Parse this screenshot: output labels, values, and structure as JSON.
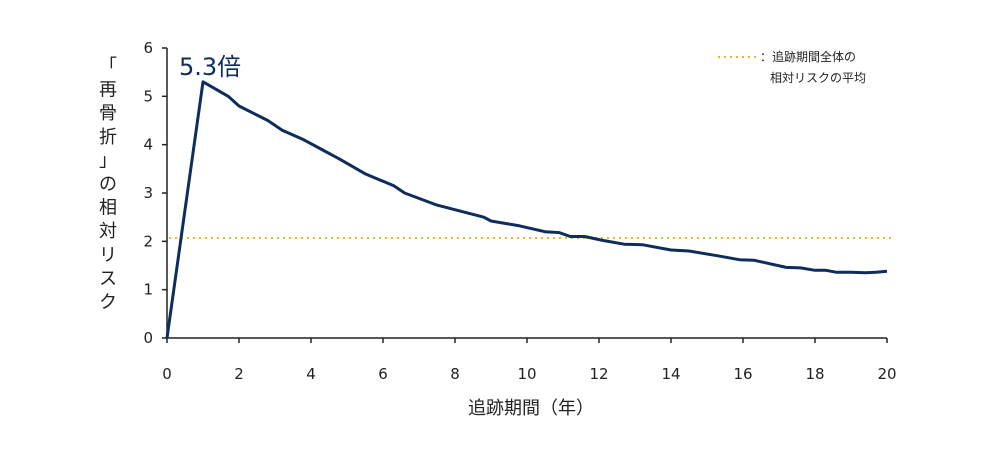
{
  "chart_data": {
    "type": "line",
    "xlabel": "追跡期間（年）",
    "ylabel": "「再骨折」の相対リスク",
    "xlim": [
      0,
      20
    ],
    "ylim": [
      0,
      6
    ],
    "xticks": [
      0,
      2,
      4,
      6,
      8,
      10,
      12,
      14,
      16,
      18,
      20
    ],
    "yticks": [
      0,
      1,
      2,
      3,
      4,
      5,
      6
    ],
    "grid": false,
    "legend_position": "top-right",
    "colors": {
      "series": "#0e2d5c",
      "reference": "#f0b323"
    },
    "annotation": {
      "text": "5.3倍",
      "x": 1.0,
      "y": 5.3
    },
    "series": [
      {
        "values": [
          [
            0,
            0
          ],
          [
            1.0,
            5.3
          ],
          [
            1.7,
            5.0
          ],
          [
            2.0,
            4.8
          ],
          [
            2.8,
            4.5
          ],
          [
            3.2,
            4.3
          ],
          [
            3.8,
            4.1
          ],
          [
            4.3,
            3.9
          ],
          [
            4.8,
            3.7
          ],
          [
            5.5,
            3.4
          ],
          [
            6.3,
            3.15
          ],
          [
            6.6,
            3.0
          ],
          [
            7.5,
            2.75
          ],
          [
            8.8,
            2.5
          ],
          [
            9.0,
            2.42
          ],
          [
            9.8,
            2.32
          ],
          [
            10.5,
            2.2
          ],
          [
            10.9,
            2.18
          ],
          [
            11.2,
            2.1
          ],
          [
            11.6,
            2.1
          ],
          [
            12.1,
            2.02
          ],
          [
            12.7,
            1.94
          ],
          [
            13.2,
            1.93
          ],
          [
            14.0,
            1.82
          ],
          [
            14.5,
            1.8
          ],
          [
            15.3,
            1.7
          ],
          [
            15.9,
            1.62
          ],
          [
            16.3,
            1.61
          ],
          [
            17.2,
            1.46
          ],
          [
            17.6,
            1.45
          ],
          [
            18.0,
            1.4
          ],
          [
            18.3,
            1.4
          ],
          [
            18.6,
            1.36
          ],
          [
            19.0,
            1.36
          ],
          [
            19.4,
            1.35
          ],
          [
            19.7,
            1.36
          ],
          [
            20.0,
            1.38
          ]
        ]
      }
    ],
    "reference_line": {
      "y": 2.07,
      "label_line1": "：追跡期間全体の",
      "label_line2": "相対リスクの平均"
    }
  }
}
